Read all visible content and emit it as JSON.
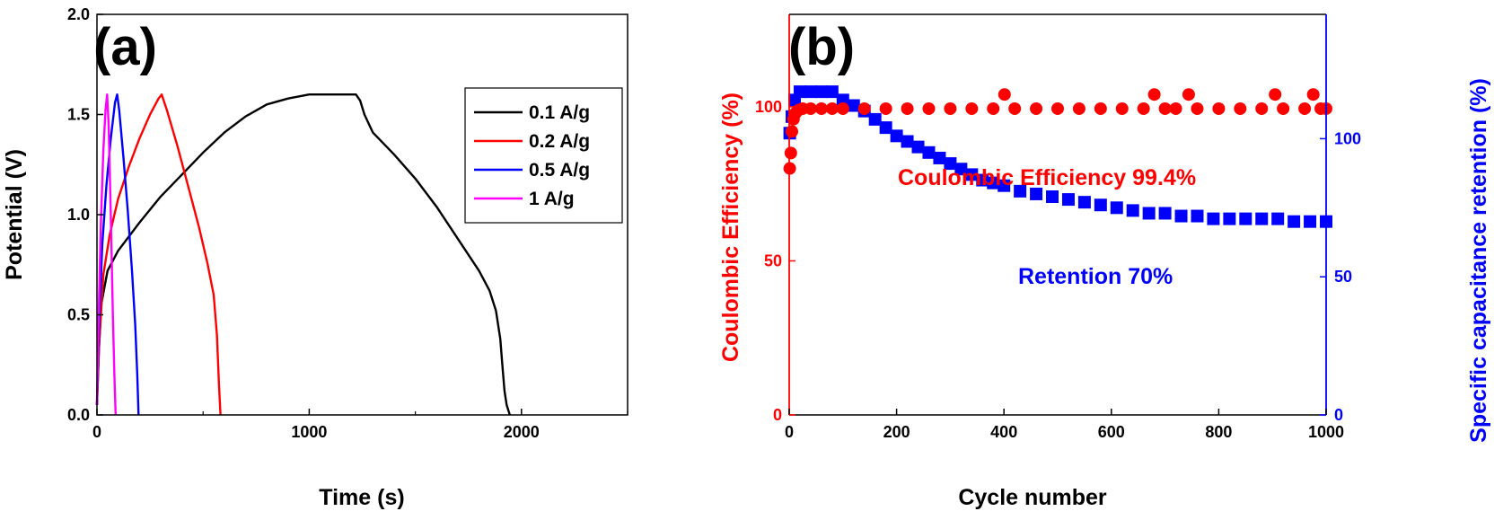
{
  "chart_data": [
    {
      "type": "line",
      "panel_label": "(a)",
      "xlabel": "Time (s)",
      "ylabel": "Potential (V)",
      "xlim": [
        0,
        2500
      ],
      "ylim": [
        0.0,
        2.0
      ],
      "xticks": [
        0,
        1000,
        2000
      ],
      "yticks": [
        0.0,
        0.5,
        1.0,
        1.5,
        2.0
      ],
      "xtick_labels": [
        "0",
        "1000",
        "2000"
      ],
      "ytick_labels": [
        "0.0",
        "0.5",
        "1.0",
        "1.5",
        "2.0"
      ],
      "legend": "top-right",
      "series": [
        {
          "name": "0.1 A/g",
          "color": "#000000",
          "x": [
            0,
            8,
            20,
            50,
            100,
            200,
            300,
            400,
            500,
            600,
            700,
            800,
            900,
            1000,
            1100,
            1220,
            1240,
            1260,
            1300,
            1400,
            1500,
            1600,
            1700,
            1800,
            1850,
            1880,
            1900,
            1910,
            1920,
            1930,
            1945
          ],
          "y": [
            0.05,
            0.3,
            0.55,
            0.72,
            0.82,
            0.96,
            1.09,
            1.2,
            1.31,
            1.41,
            1.49,
            1.55,
            1.58,
            1.6,
            1.6,
            1.6,
            1.57,
            1.5,
            1.41,
            1.3,
            1.18,
            1.04,
            0.88,
            0.72,
            0.62,
            0.52,
            0.38,
            0.25,
            0.12,
            0.05,
            0.0
          ]
        },
        {
          "name": "0.2 A/g",
          "color": "#ff0000",
          "x": [
            0,
            10,
            30,
            60,
            100,
            150,
            200,
            250,
            290,
            305,
            330,
            380,
            430,
            480,
            520,
            550,
            565,
            575,
            582
          ],
          "y": [
            0.05,
            0.35,
            0.7,
            0.9,
            1.08,
            1.24,
            1.38,
            1.5,
            1.58,
            1.6,
            1.52,
            1.34,
            1.14,
            0.94,
            0.76,
            0.6,
            0.4,
            0.15,
            0.0
          ]
        },
        {
          "name": "0.5 A/g",
          "color": "#0000ff",
          "x": [
            0,
            10,
            25,
            45,
            65,
            85,
            95,
            105,
            125,
            145,
            165,
            180,
            190,
            196
          ],
          "y": [
            0.05,
            0.45,
            0.85,
            1.15,
            1.38,
            1.56,
            1.6,
            1.52,
            1.28,
            1.02,
            0.72,
            0.45,
            0.2,
            0.0
          ]
        },
        {
          "name": "1 A/g",
          "color": "#ff00ff",
          "x": [
            0,
            8,
            18,
            30,
            40,
            48,
            55,
            65,
            75,
            82,
            88
          ],
          "y": [
            0.05,
            0.5,
            0.95,
            1.32,
            1.52,
            1.6,
            1.45,
            1.0,
            0.5,
            0.2,
            0.0
          ]
        }
      ]
    },
    {
      "type": "scatter",
      "panel_label": "(b)",
      "xlabel": "Cycle number",
      "ylabel_left": "Coulombic Efficiency (%)",
      "ylabel_right": "Specific capacitance retention (%)",
      "xlim": [
        0,
        1000
      ],
      "ylim_left": [
        0,
        130
      ],
      "ylim_right": [
        0,
        145
      ],
      "xticks": [
        0,
        200,
        400,
        600,
        800,
        1000
      ],
      "yticks_left": [
        0,
        50,
        100
      ],
      "yticks_right": [
        0,
        50,
        100
      ],
      "xtick_labels": [
        "0",
        "200",
        "400",
        "600",
        "800",
        "1000"
      ],
      "ytick_left_labels": [
        "0",
        "50",
        "100"
      ],
      "ytick_right_labels": [
        "0",
        "50",
        "100"
      ],
      "annotations": [
        {
          "text": "Coulombic Efficiency 99.4%",
          "color": "#ff0000"
        },
        {
          "text": "Retention 70%",
          "color": "#0000ff"
        }
      ],
      "series": [
        {
          "name": "Coulombic Efficiency",
          "axis": "left",
          "color": "#ff0000",
          "marker": "circle",
          "x": [
            1,
            3,
            5,
            8,
            12,
            18,
            25,
            40,
            60,
            80,
            100,
            140,
            180,
            220,
            260,
            300,
            340,
            380,
            401,
            420,
            460,
            500,
            540,
            580,
            620,
            660,
            680,
            700,
            720,
            744,
            760,
            800,
            840,
            880,
            905,
            920,
            960,
            976,
            990,
            1000
          ],
          "y": [
            80,
            85,
            92,
            96,
            98,
            99,
            99.4,
            99.4,
            99.4,
            99.4,
            99.4,
            99.4,
            99.4,
            99.4,
            99.4,
            99.4,
            99.4,
            99.4,
            104,
            99.4,
            99.4,
            99.4,
            99.4,
            99.4,
            99.4,
            99.4,
            104,
            99.4,
            99.4,
            104,
            99.4,
            99.4,
            99.4,
            99.4,
            104,
            99.4,
            99.4,
            104,
            99.4,
            99.4
          ]
        },
        {
          "name": "Retention",
          "axis": "right",
          "color": "#0000ff",
          "marker": "square",
          "x": [
            1,
            5,
            10,
            20,
            40,
            60,
            80,
            100,
            120,
            140,
            160,
            180,
            200,
            220,
            240,
            260,
            280,
            300,
            320,
            340,
            360,
            380,
            400,
            430,
            460,
            490,
            520,
            550,
            580,
            610,
            640,
            670,
            700,
            730,
            760,
            790,
            820,
            850,
            880,
            910,
            940,
            970,
            1000
          ],
          "y": [
            102,
            108,
            114,
            117,
            117,
            117,
            117,
            114,
            112,
            110,
            107,
            104,
            101,
            99,
            97,
            95,
            93,
            91,
            89,
            87,
            85,
            84,
            83,
            81,
            80,
            79,
            78,
            77,
            76,
            75,
            74,
            73,
            73,
            72,
            72,
            71,
            71,
            71,
            71,
            71,
            70,
            70,
            70
          ]
        }
      ]
    }
  ]
}
